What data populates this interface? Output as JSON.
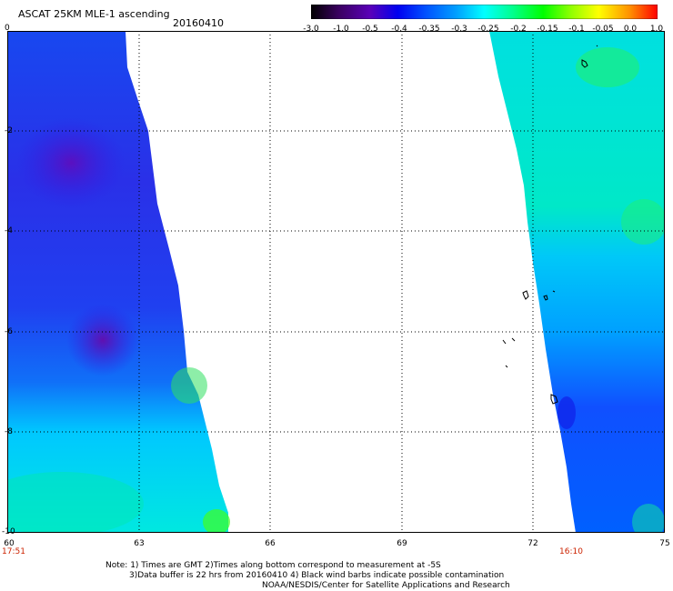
{
  "header": {
    "title": "ASCAT 25KM MLE-1 ascending",
    "date": "20160410"
  },
  "colorbar": {
    "labels": [
      "-3.0",
      "-1.0",
      "-0.5",
      "-0.4",
      "-0.35",
      "-0.3",
      "-0.25",
      "-0.2",
      "-0.15",
      "-0.1",
      "-0.05",
      "0.0",
      "1.0"
    ],
    "colors": [
      "#000000",
      "#3a0060",
      "#5a00b8",
      "#0000f0",
      "#0050ff",
      "#00a0ff",
      "#00ffff",
      "#00ff90",
      "#00ff00",
      "#90ff00",
      "#ffff00",
      "#ff9000",
      "#ff0000"
    ]
  },
  "axes": {
    "lat_labels": [
      "0",
      "-2",
      "-4",
      "-6",
      "-8",
      "-10"
    ],
    "lon_labels": [
      "60",
      "63",
      "66",
      "69",
      "72",
      "75"
    ]
  },
  "times": {
    "left": "17:51",
    "right": "16:10"
  },
  "footer": {
    "line1": "Note: 1) Times are GMT 2)Times along bottom correspond to measurement at -5S",
    "line2": "3)Data buffer is 22 hrs from 20160410 4) Black wind barbs indicate possible contamination",
    "line3": "NOAA/NESDIS/Center for Satellite Applications and Research"
  }
}
